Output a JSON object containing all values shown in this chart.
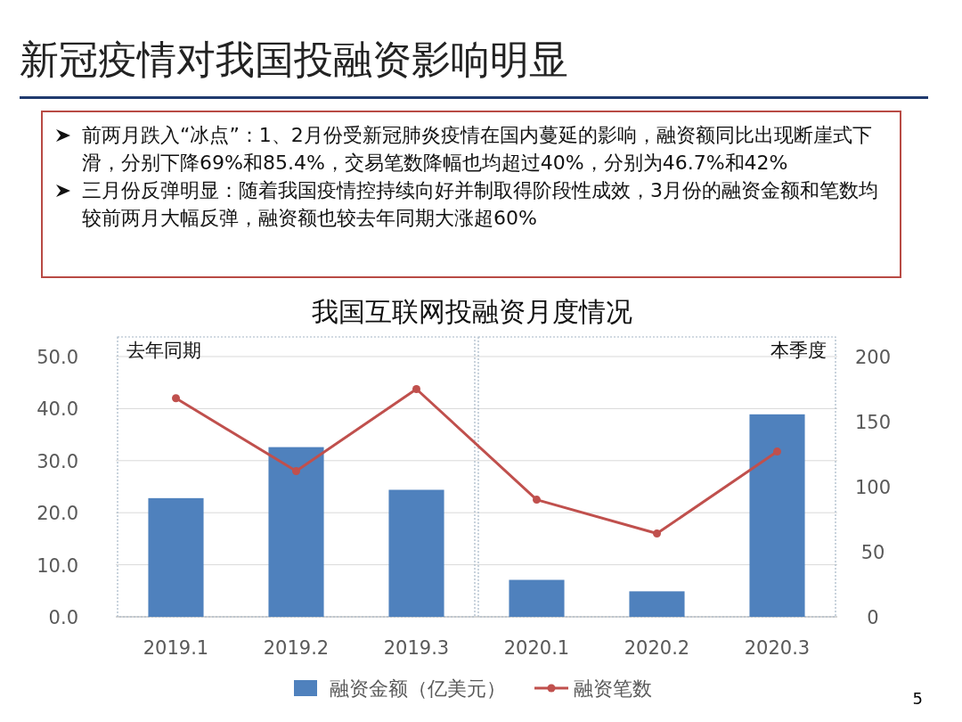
{
  "chart_data": {
    "type": "bar",
    "title": "新冠疫情对我国投融资影响明显",
    "subtitle": "我国互联网投融资月度情况",
    "annotations": [
      "前两月跌入“冰点”：1、2月份受新冠肺炎疫情在国内蔓延的影响，融资额同比出现断崖式下滑，分别下降69%和85.4%，交易笔数降幅也均超过40%，分别为46.7%和42%",
      "三月份反弹明显：随着我国疫情控持续向好并制取得阶段性成效，3月份的融资金额和笔数均较前两月大幅反弹，融资额也较去年同期大涨超60%",
      "去年同期",
      "本季度",
      "5"
    ],
    "categories": [
      "2019.1",
      "2019.2",
      "2019.3",
      "2020.1",
      "2020.2",
      "2020.3"
    ],
    "series": [
      {
        "name": "融资金额（亿美元）",
        "color": "#4f81bd",
        "values": [
          22.8,
          32.6,
          24.4,
          7.1,
          4.9,
          38.9
        ]
      },
      {
        "name": "融资笔数",
        "type": "line",
        "axis": "y2",
        "color": "#c0504d",
        "values": [
          168,
          112,
          175,
          90,
          64,
          127
        ]
      }
    ],
    "ylim": [
      0,
      50
    ],
    "yticks": [
      {
        "value": 0,
        "label": "0.0"
      },
      {
        "value": 10,
        "label": "10.0"
      },
      {
        "value": 20,
        "label": "20.0"
      },
      {
        "value": 30,
        "label": "30.0"
      },
      {
        "value": 40,
        "label": "40.0"
      },
      {
        "value": 50,
        "label": "50.0"
      }
    ],
    "y2lim": [
      0,
      200
    ],
    "y2ticks": [
      0,
      50,
      100,
      150,
      200
    ],
    "grid": "y",
    "legend": "bottom",
    "marker": "circle"
  }
}
